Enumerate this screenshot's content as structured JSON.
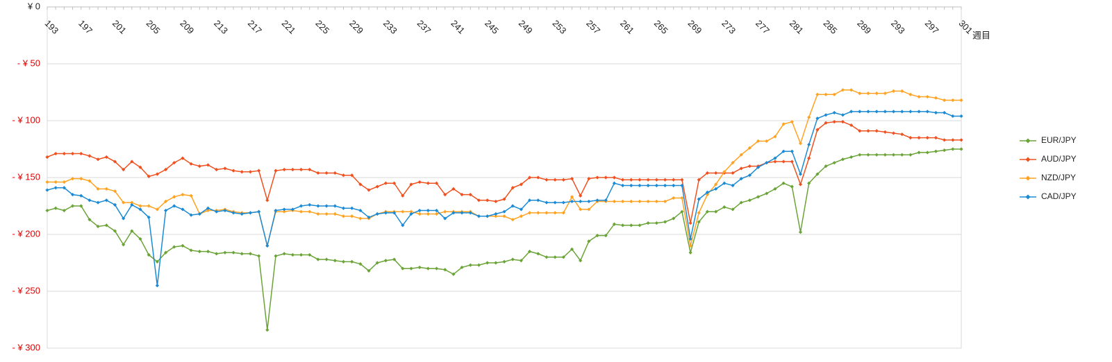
{
  "chart_data": {
    "type": "line",
    "x_label": "週目",
    "categories": [
      "193",
      null,
      null,
      null,
      "197",
      null,
      null,
      null,
      "201",
      null,
      null,
      null,
      "205",
      null,
      null,
      null,
      "209",
      null,
      null,
      null,
      "213",
      null,
      null,
      null,
      "217",
      null,
      null,
      null,
      "221",
      null,
      null,
      null,
      "225",
      null,
      null,
      null,
      "229",
      null,
      null,
      null,
      "233",
      null,
      null,
      null,
      "237",
      null,
      null,
      null,
      "241",
      null,
      null,
      null,
      "245",
      null,
      null,
      null,
      "249",
      null,
      null,
      null,
      "253",
      null,
      null,
      null,
      "257",
      null,
      null,
      null,
      "261",
      null,
      null,
      null,
      "265",
      null,
      null,
      null,
      "269",
      null,
      null,
      null,
      "273",
      null,
      null,
      null,
      "277",
      null,
      null,
      null,
      "281",
      null,
      null,
      null,
      "285",
      null,
      null,
      null,
      "289",
      null,
      null,
      null,
      "293",
      null,
      null,
      null,
      "297",
      null,
      null,
      null,
      "301"
    ],
    "ylim": [
      -300,
      0
    ],
    "yticks": [
      {
        "value": 0,
        "label": "¥ 0"
      },
      {
        "value": -50,
        "label": "- ¥ 50"
      },
      {
        "value": -100,
        "label": "- ¥ 100"
      },
      {
        "value": -150,
        "label": "- ¥ 150"
      },
      {
        "value": -200,
        "label": "- ¥ 200"
      },
      {
        "value": -250,
        "label": "- ¥ 250"
      },
      {
        "value": -300,
        "label": "- ¥ 300"
      }
    ],
    "negative_tick_color": "#e00000",
    "grid": true,
    "legend": "right",
    "series": [
      {
        "name": "EUR/JPY",
        "color": "#6aa336",
        "values": [
          -179,
          -177,
          -179,
          -175,
          -175,
          -187,
          -193,
          -192,
          -197,
          -209,
          -197,
          -204,
          -218,
          -224,
          -216,
          -211,
          -210,
          -214,
          -215,
          -215,
          -217,
          -216,
          -216,
          -217,
          -217,
          -219,
          -284,
          -219,
          -217,
          -218,
          -218,
          -218,
          -222,
          -222,
          -223,
          -224,
          -224,
          -226,
          -232,
          -225,
          -223,
          -222,
          -230,
          -230,
          -229,
          -230,
          -230,
          -231,
          -235,
          -229,
          -227,
          -227,
          -225,
          -225,
          -224,
          -222,
          -223,
          -215,
          -217,
          -220,
          -220,
          -220,
          -213,
          -223,
          -206,
          -201,
          -201,
          -191,
          -192,
          -192,
          -192,
          -190,
          -190,
          -189,
          -186,
          -180,
          -216,
          -189,
          -180,
          -180,
          -176,
          -178,
          -172,
          -170,
          -167,
          -164,
          -160,
          -155,
          -158,
          -198,
          -155,
          -147,
          -140,
          -137,
          -134,
          -132,
          -130,
          -130,
          -130,
          -130,
          -130,
          -130,
          -130,
          -128,
          -128,
          -127,
          -126,
          -125,
          -125
        ]
      },
      {
        "name": "AUD/JPY",
        "color": "#f0501e",
        "values": [
          -132,
          -129,
          -129,
          -129,
          -129,
          -131,
          -134,
          -132,
          -136,
          -143,
          -136,
          -141,
          -149,
          -147,
          -143,
          -137,
          -133,
          -138,
          -140,
          -139,
          -143,
          -142,
          -144,
          -145,
          -145,
          -144,
          -170,
          -144,
          -143,
          -143,
          -143,
          -143,
          -146,
          -146,
          -146,
          -148,
          -148,
          -156,
          -161,
          -158,
          -155,
          -155,
          -166,
          -156,
          -154,
          -155,
          -155,
          -165,
          -160,
          -165,
          -165,
          -170,
          -170,
          -171,
          -169,
          -159,
          -156,
          -150,
          -150,
          -152,
          -152,
          -152,
          -151,
          -166,
          -151,
          -150,
          -150,
          -150,
          -152,
          -152,
          -152,
          -152,
          -152,
          -152,
          -152,
          -152,
          -190,
          -152,
          -146,
          -146,
          -146,
          -146,
          -142,
          -140,
          -140,
          -137,
          -136,
          -136,
          -136,
          -156,
          -133,
          -108,
          -102,
          -101,
          -101,
          -104,
          -109,
          -109,
          -109,
          -110,
          -111,
          -112,
          -115,
          -115,
          -115,
          -115,
          -117,
          -117,
          -117
        ]
      },
      {
        "name": "NZD/JPY",
        "color": "#ffa220",
        "values": [
          -154,
          -154,
          -154,
          -151,
          -151,
          -153,
          -160,
          -160,
          -162,
          -172,
          -172,
          -175,
          -175,
          -178,
          -171,
          -167,
          -165,
          -166,
          -182,
          -179,
          -179,
          -178,
          -180,
          -181,
          -181,
          -180,
          -210,
          -180,
          -180,
          -179,
          -180,
          -180,
          -182,
          -182,
          -182,
          -184,
          -184,
          -186,
          -186,
          -182,
          -180,
          -180,
          -180,
          -180,
          -182,
          -182,
          -182,
          -180,
          -180,
          -180,
          -180,
          -184,
          -184,
          -184,
          -184,
          -187,
          -184,
          -181,
          -181,
          -181,
          -181,
          -181,
          -167,
          -178,
          -178,
          -171,
          -171,
          -171,
          -171,
          -171,
          -171,
          -171,
          -171,
          -171,
          -168,
          -168,
          -210,
          -181,
          -165,
          -156,
          -145,
          -137,
          -130,
          -124,
          -118,
          -118,
          -114,
          -103,
          -101,
          -120,
          -97,
          -77,
          -77,
          -77,
          -73,
          -73,
          -76,
          -76,
          -76,
          -76,
          -74,
          -74,
          -77,
          -79,
          -79,
          -80,
          -82,
          -82,
          -82
        ]
      },
      {
        "name": "CAD/JPY",
        "color": "#1a8ad4",
        "values": [
          -161,
          -159,
          -159,
          -165,
          -166,
          -170,
          -172,
          -170,
          -174,
          -186,
          -174,
          -178,
          -185,
          -245,
          -179,
          -175,
          -178,
          -183,
          -182,
          -177,
          -180,
          -179,
          -181,
          -182,
          -181,
          -180,
          -210,
          -179,
          -178,
          -178,
          -175,
          -174,
          -175,
          -175,
          -175,
          -177,
          -177,
          -179,
          -185,
          -182,
          -181,
          -181,
          -192,
          -182,
          -179,
          -179,
          -179,
          -186,
          -181,
          -181,
          -181,
          -184,
          -184,
          -182,
          -180,
          -175,
          -178,
          -170,
          -170,
          -172,
          -172,
          -172,
          -171,
          -171,
          -171,
          -170,
          -170,
          -155,
          -157,
          -157,
          -157,
          -157,
          -157,
          -157,
          -157,
          -157,
          -204,
          -169,
          -163,
          -160,
          -155,
          -157,
          -151,
          -148,
          -141,
          -137,
          -133,
          -127,
          -127,
          -147,
          -121,
          -98,
          -95,
          -93,
          -95,
          -92,
          -92,
          -92,
          -92,
          -92,
          -92,
          -92,
          -92,
          -92,
          -92,
          -93,
          -93,
          -96,
          -96
        ]
      }
    ]
  }
}
